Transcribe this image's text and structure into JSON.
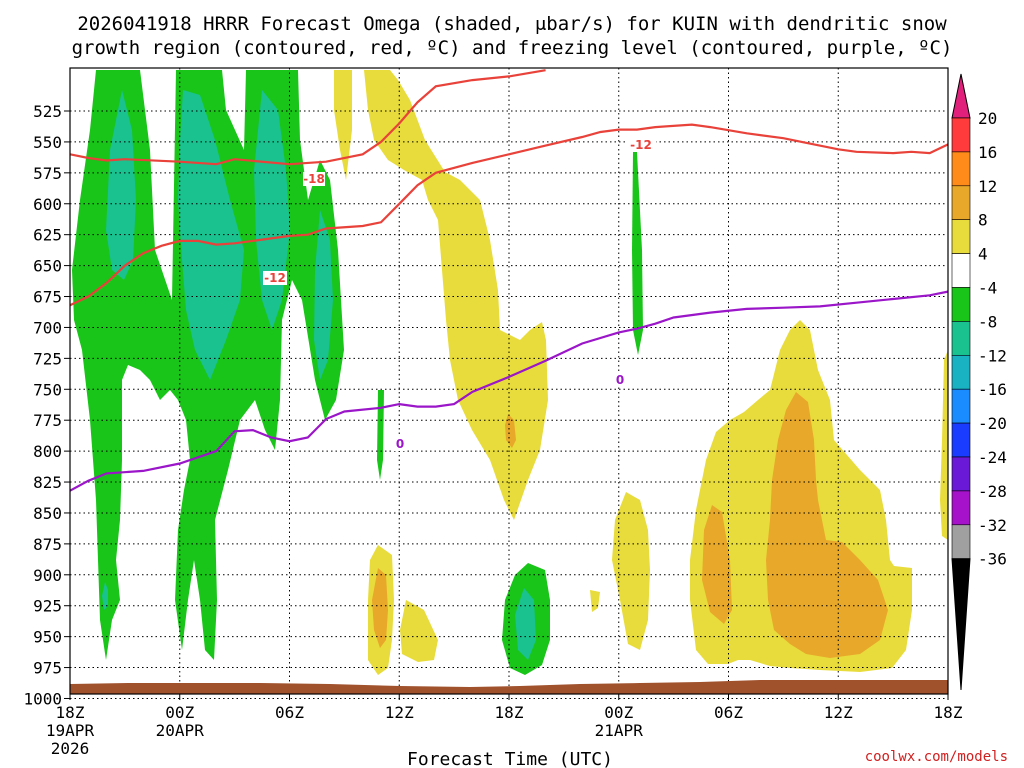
{
  "chart_data": {
    "type": "time-height contour",
    "title_line1": "2026041918 HRRR Forecast Omega (shaded, μbar/s) for KUIN with dendritic snow",
    "title_line2": "growth region (contoured, red, ºC) and freezing level (contoured, purple, ºC)",
    "xlabel": "Forecast Time (UTC)",
    "credit": "coolwx.com/models",
    "x_range_hours": [
      0,
      48
    ],
    "x_ticks": [
      {
        "h": 0,
        "label": "18Z",
        "sub1": "19APR",
        "sub2": "2026"
      },
      {
        "h": 6,
        "label": "00Z",
        "sub1": "20APR",
        "sub2": ""
      },
      {
        "h": 12,
        "label": "06Z",
        "sub1": "",
        "sub2": ""
      },
      {
        "h": 18,
        "label": "12Z",
        "sub1": "",
        "sub2": ""
      },
      {
        "h": 24,
        "label": "18Z",
        "sub1": "",
        "sub2": ""
      },
      {
        "h": 30,
        "label": "00Z",
        "sub1": "21APR",
        "sub2": ""
      },
      {
        "h": 36,
        "label": "06Z",
        "sub1": "",
        "sub2": ""
      },
      {
        "h": 42,
        "label": "12Z",
        "sub1": "",
        "sub2": ""
      },
      {
        "h": 48,
        "label": "18Z",
        "sub1": "",
        "sub2": ""
      }
    ],
    "y_ticks_hpa": [
      525,
      550,
      575,
      600,
      625,
      650,
      675,
      700,
      725,
      750,
      775,
      800,
      825,
      850,
      875,
      900,
      925,
      950,
      975,
      1000
    ],
    "colorbar": {
      "labels": [
        "20",
        "16",
        "12",
        "8",
        "4",
        "-4",
        "-8",
        "-12",
        "-16",
        "-20",
        "-24",
        "-28",
        "-32",
        "-36"
      ],
      "colors": [
        "#ff3b3b",
        "#ff8c1a",
        "#e8a82a",
        "#e8dc3c",
        "#ffffff",
        "#19c519",
        "#19c28f",
        "#19b2c2",
        "#1a8cff",
        "#1a3cff",
        "#6a1ad6",
        "#a512c9",
        "#a0a0a0"
      ],
      "top_arrow": "#e0207a",
      "bottom_arrow": "#000000",
      "outline": "#000000"
    },
    "omega_colors": {
      "gte4": "#e8dc3c",
      "gte8": "#e8a82a",
      "lte_m4": "#19c519",
      "lte_m8": "#19c28f"
    },
    "ground_color": "#a0522d",
    "red_line_color": "#e8423a",
    "purple_line_color": "#9a16c8",
    "dgz_top_minus18": [
      [
        0,
        560
      ],
      [
        1,
        563
      ],
      [
        2,
        565
      ],
      [
        3,
        564
      ],
      [
        6,
        566
      ],
      [
        8,
        568
      ],
      [
        9,
        564
      ],
      [
        12,
        568
      ],
      [
        14,
        566
      ],
      [
        16,
        560
      ],
      [
        17,
        550
      ],
      [
        18,
        535
      ],
      [
        19,
        518
      ],
      [
        20,
        505
      ],
      [
        22,
        500
      ],
      [
        24,
        497
      ],
      [
        26,
        492
      ]
    ],
    "dgz_bottom_minus12": [
      [
        0,
        682
      ],
      [
        1,
        675
      ],
      [
        2,
        664
      ],
      [
        3,
        650
      ],
      [
        4,
        640
      ],
      [
        5,
        634
      ],
      [
        6,
        630
      ],
      [
        7,
        630
      ],
      [
        8,
        633
      ],
      [
        9,
        632
      ],
      [
        11,
        628
      ],
      [
        12,
        626
      ],
      [
        13,
        625
      ],
      [
        14,
        620
      ],
      [
        16,
        618
      ],
      [
        17,
        615
      ],
      [
        18,
        600
      ],
      [
        19,
        585
      ],
      [
        20,
        575
      ],
      [
        22,
        567
      ],
      [
        24,
        560
      ],
      [
        26,
        553
      ],
      [
        28,
        546
      ],
      [
        29,
        542
      ],
      [
        30,
        540
      ],
      [
        31,
        540
      ],
      [
        32,
        538
      ],
      [
        34,
        536
      ],
      [
        35,
        538
      ],
      [
        37,
        543
      ],
      [
        39,
        547
      ],
      [
        40,
        550
      ],
      [
        42,
        556
      ],
      [
        43,
        558
      ],
      [
        45,
        559
      ],
      [
        46,
        558
      ],
      [
        47,
        559
      ],
      [
        48,
        552
      ]
    ],
    "dgz_label_upper": "-18",
    "dgz_label_lower": "-12",
    "freezing_level": [
      [
        0,
        832
      ],
      [
        1,
        824
      ],
      [
        2,
        818
      ],
      [
        4,
        816
      ],
      [
        6,
        810
      ],
      [
        7,
        805
      ],
      [
        8,
        800
      ],
      [
        9,
        784
      ],
      [
        10,
        783
      ],
      [
        11,
        789
      ],
      [
        12,
        792
      ],
      [
        13,
        789
      ],
      [
        14,
        774
      ],
      [
        15,
        768
      ],
      [
        17,
        765
      ],
      [
        18,
        762
      ],
      [
        19,
        764
      ],
      [
        20,
        764
      ],
      [
        21,
        762
      ],
      [
        22,
        752
      ],
      [
        24,
        740
      ],
      [
        26,
        727
      ],
      [
        28,
        713
      ],
      [
        30,
        704
      ],
      [
        31,
        701
      ],
      [
        32,
        697
      ],
      [
        33,
        692
      ],
      [
        35,
        688
      ],
      [
        37,
        685
      ],
      [
        39,
        684
      ],
      [
        41,
        683
      ],
      [
        43,
        680
      ],
      [
        45,
        677
      ],
      [
        47,
        674
      ],
      [
        48,
        671
      ]
    ],
    "freezing_label": "0"
  }
}
